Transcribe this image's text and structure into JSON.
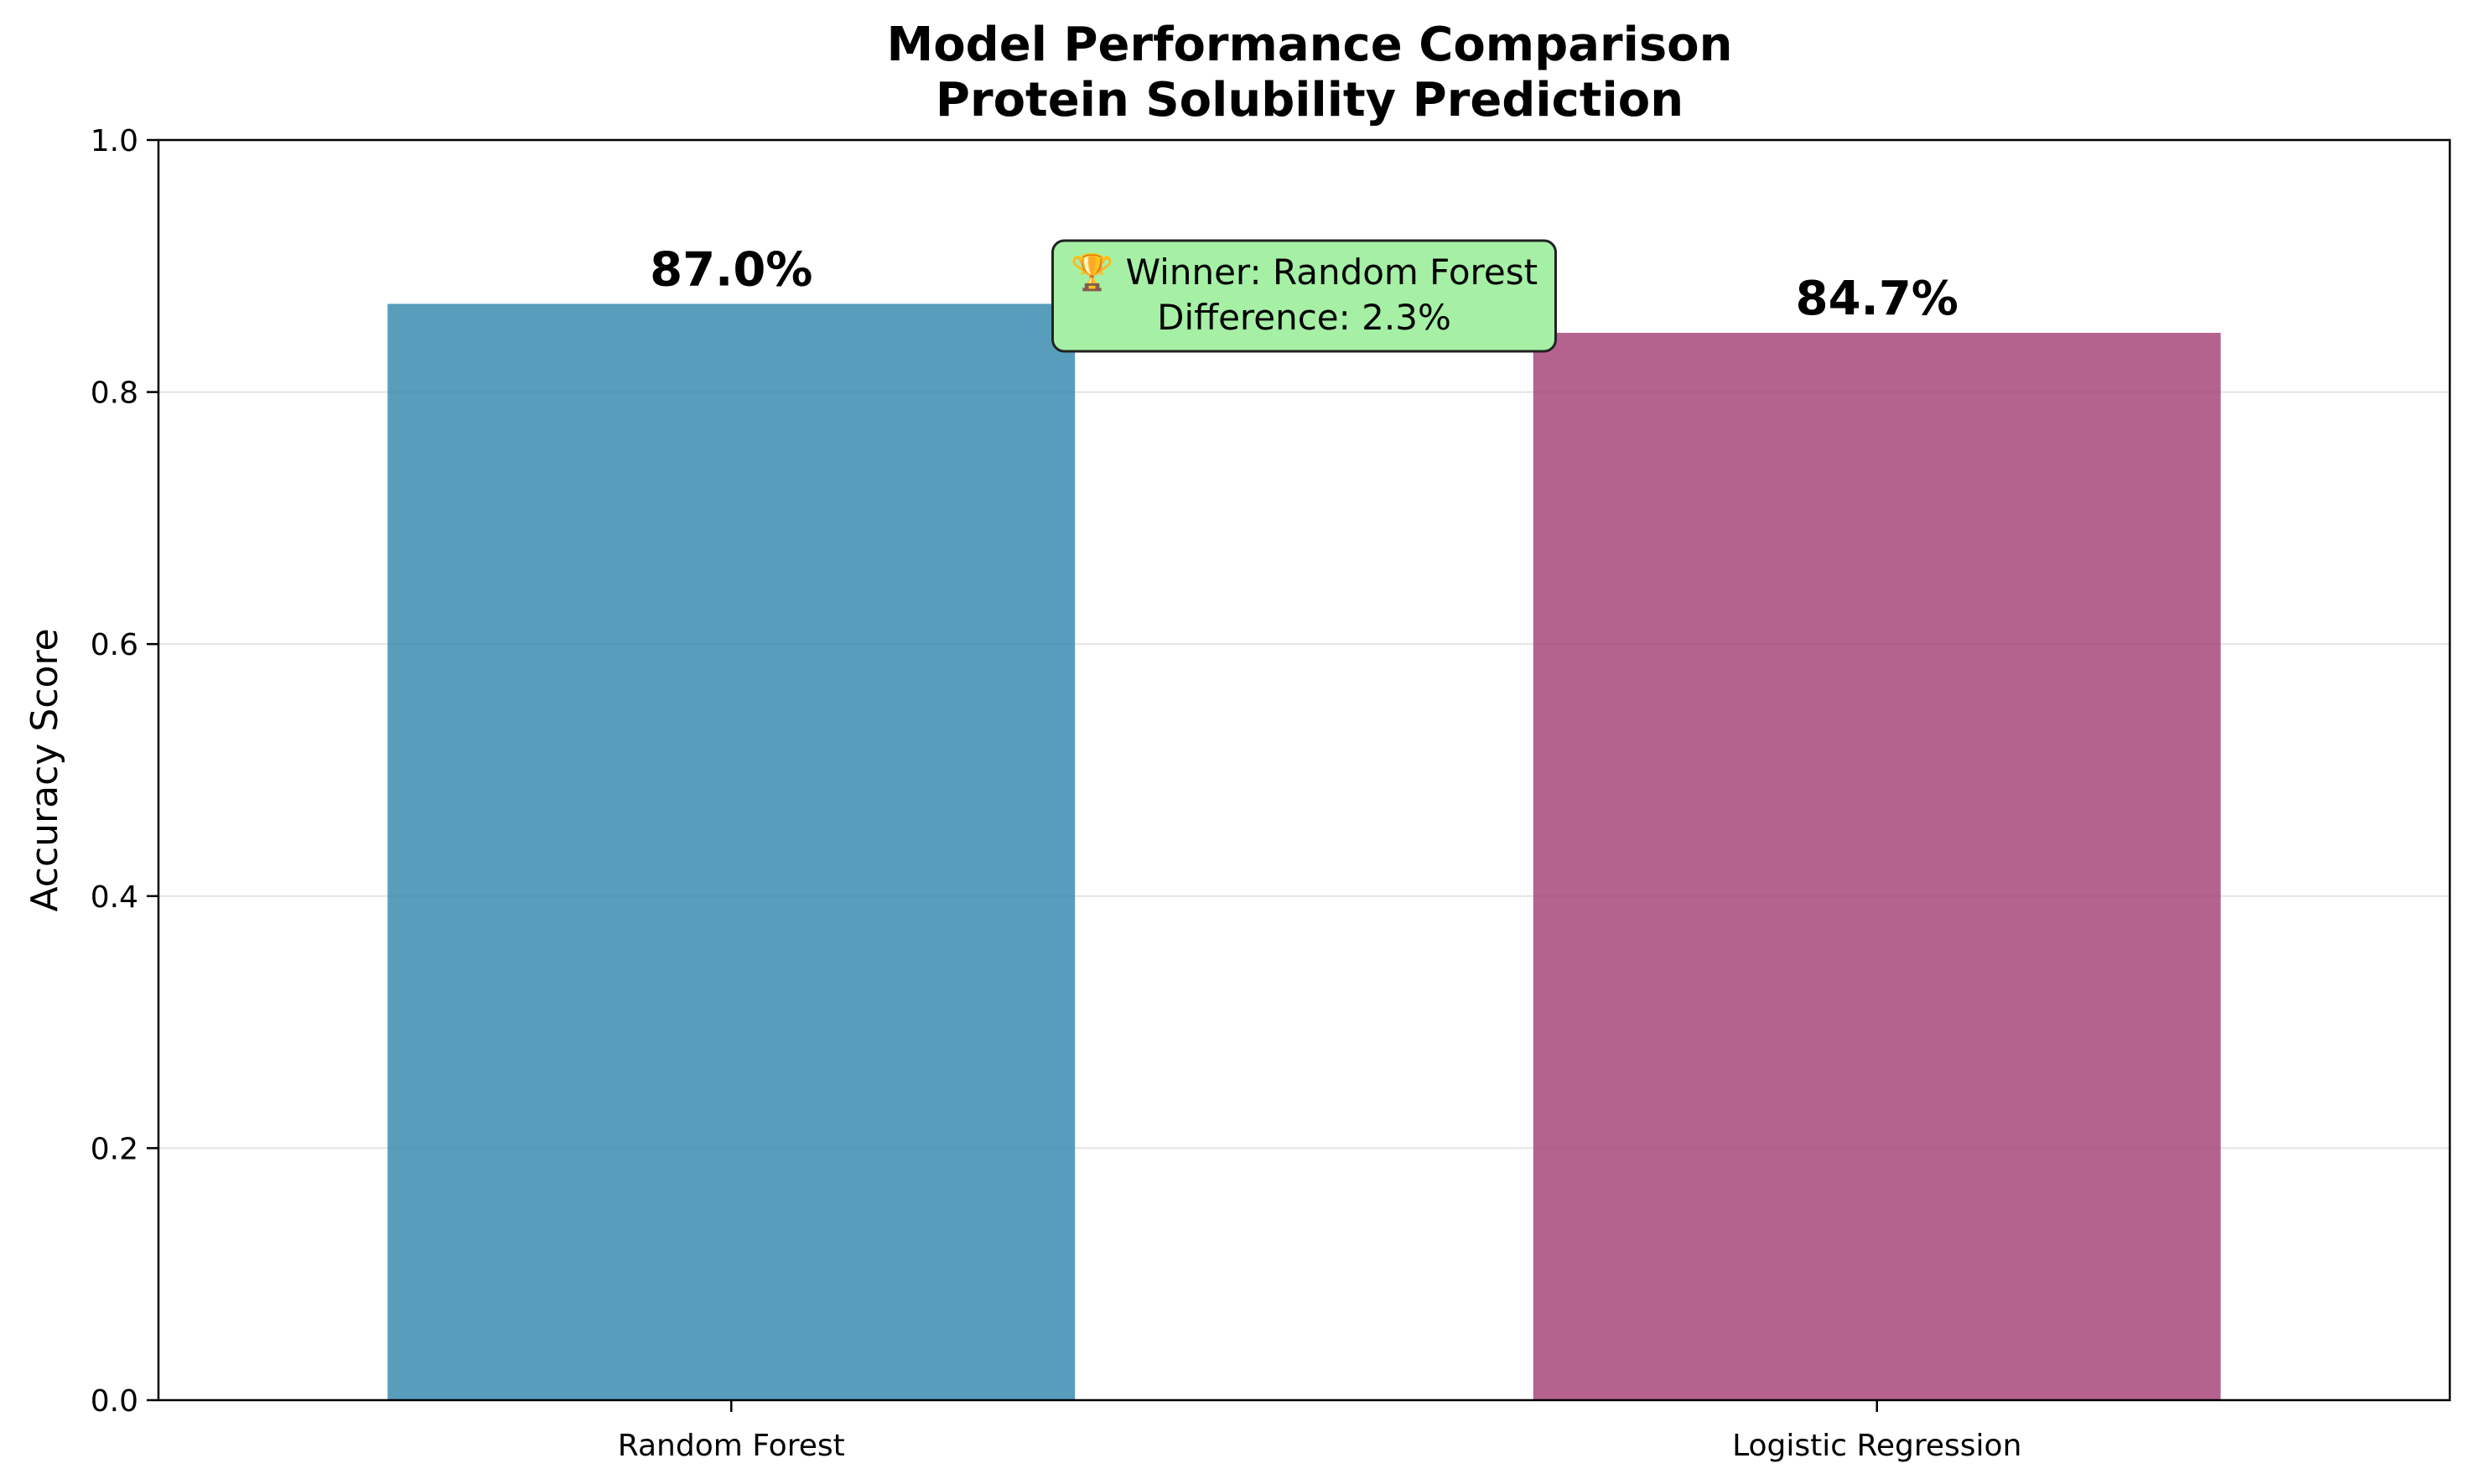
{
  "chart_data": {
    "type": "bar",
    "title": "Model Performance Comparison",
    "subtitle": "Protein Solubility Prediction",
    "xlabel": "",
    "ylabel": "Accuracy Score",
    "ylim": [
      0,
      1.0
    ],
    "yticks": [
      0.0,
      0.2,
      0.4,
      0.6,
      0.8,
      1.0
    ],
    "ytick_labels": [
      "0.0",
      "0.2",
      "0.4",
      "0.6",
      "0.8",
      "1.0"
    ],
    "grid": "y",
    "categories": [
      "Random Forest",
      "Logistic Regression"
    ],
    "values": [
      0.87,
      0.847
    ],
    "data_labels": [
      "87.0%",
      "84.7%"
    ],
    "colors": [
      "#2E86AB",
      "#A23B72"
    ],
    "annotation": {
      "line1": "🏆 Winner: Random Forest",
      "line2": "Difference: 2.3%",
      "background": "#A5F0A5"
    }
  }
}
